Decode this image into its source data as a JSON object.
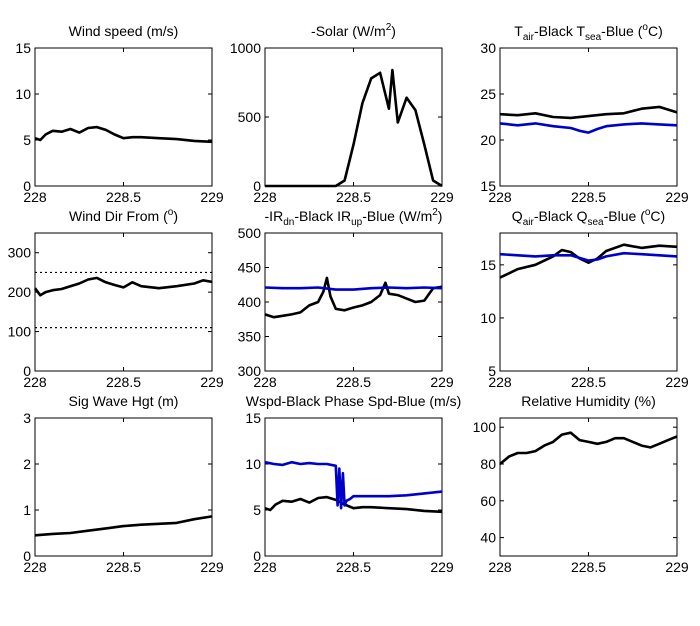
{
  "chart_data": [
    {
      "type": "line",
      "title": "Wind speed (m/s)",
      "xlim": [
        228,
        229
      ],
      "ylim": [
        0,
        15
      ],
      "xticks": [
        "228",
        "228.5",
        "229"
      ],
      "yticks": [
        "0",
        "5",
        "10",
        "15"
      ],
      "series": [
        {
          "color": "#000000",
          "x": [
            228,
            228.03,
            228.06,
            228.1,
            228.15,
            228.2,
            228.25,
            228.3,
            228.35,
            228.4,
            228.45,
            228.5,
            228.55,
            228.6,
            228.7,
            228.8,
            228.9,
            229
          ],
          "y": [
            5.2,
            5.0,
            5.6,
            6.0,
            5.9,
            6.2,
            5.8,
            6.3,
            6.4,
            6.1,
            5.6,
            5.2,
            5.3,
            5.3,
            5.2,
            5.1,
            4.9,
            4.8
          ]
        }
      ]
    },
    {
      "type": "line",
      "title": "-Solar (W/m",
      "title_sup": "2",
      "title_end": ")",
      "xlim": [
        228,
        229
      ],
      "ylim": [
        0,
        1000
      ],
      "xticks": [
        "228",
        "228.5",
        "229"
      ],
      "yticks": [
        "0",
        "500",
        "1000"
      ],
      "series": [
        {
          "color": "#000000",
          "x": [
            228,
            228.2,
            228.4,
            228.45,
            228.5,
            228.55,
            228.6,
            228.65,
            228.7,
            228.72,
            228.75,
            228.8,
            228.85,
            228.9,
            228.95,
            229
          ],
          "y": [
            0,
            0,
            0,
            40,
            300,
            600,
            780,
            820,
            560,
            840,
            460,
            640,
            550,
            300,
            40,
            0
          ]
        }
      ]
    },
    {
      "type": "line",
      "title_parts": [
        {
          "t": "T"
        },
        {
          "t": "air",
          "sub": true
        },
        {
          "t": "-Black  T"
        },
        {
          "t": "sea",
          "sub": true
        },
        {
          "t": "-Blue ("
        },
        {
          "t": "o",
          "sup": true
        },
        {
          "t": "C)"
        }
      ],
      "xlim": [
        228,
        229
      ],
      "ylim": [
        15,
        30
      ],
      "xticks": [
        "228",
        "228.5",
        "229"
      ],
      "yticks": [
        "15",
        "20",
        "25",
        "30"
      ],
      "series": [
        {
          "color": "#000000",
          "x": [
            228,
            228.1,
            228.2,
            228.3,
            228.4,
            228.5,
            228.6,
            228.7,
            228.8,
            228.9,
            229
          ],
          "y": [
            22.8,
            22.7,
            22.9,
            22.5,
            22.4,
            22.6,
            22.8,
            22.9,
            23.4,
            23.6,
            23.0
          ]
        },
        {
          "color": "#0000cc",
          "x": [
            228,
            228.1,
            228.2,
            228.3,
            228.4,
            228.45,
            228.5,
            228.55,
            228.6,
            228.7,
            228.8,
            228.9,
            229
          ],
          "y": [
            21.8,
            21.6,
            21.8,
            21.5,
            21.3,
            21.0,
            20.8,
            21.2,
            21.5,
            21.7,
            21.8,
            21.7,
            21.6
          ]
        }
      ]
    },
    {
      "type": "line",
      "title": "Wind Dir From (",
      "title_sup": "o",
      "title_end": ")",
      "xlim": [
        228,
        229
      ],
      "ylim": [
        0,
        350
      ],
      "xticks": [
        "228",
        "228.5",
        "229"
      ],
      "yticks": [
        "0",
        "100",
        "200",
        "300"
      ],
      "dotted_lines": [
        250,
        110
      ],
      "series": [
        {
          "color": "#000000",
          "x": [
            228,
            228.03,
            228.06,
            228.1,
            228.15,
            228.2,
            228.25,
            228.3,
            228.35,
            228.4,
            228.45,
            228.5,
            228.55,
            228.6,
            228.7,
            228.8,
            228.9,
            228.95,
            229
          ],
          "y": [
            210,
            192,
            200,
            205,
            208,
            215,
            222,
            232,
            236,
            225,
            218,
            212,
            225,
            215,
            210,
            215,
            222,
            230,
            226
          ]
        }
      ]
    },
    {
      "type": "line",
      "title_parts": [
        {
          "t": "-IR"
        },
        {
          "t": "dn",
          "sub": true
        },
        {
          "t": "-Black  IR"
        },
        {
          "t": "up",
          "sub": true
        },
        {
          "t": "-Blue (W/m"
        },
        {
          "t": "2",
          "sup": true
        },
        {
          "t": ")"
        }
      ],
      "xlim": [
        228,
        229
      ],
      "ylim": [
        300,
        500
      ],
      "xticks": [
        "228",
        "228.5",
        "229"
      ],
      "yticks": [
        "300",
        "350",
        "400",
        "450",
        "500"
      ],
      "series": [
        {
          "color": "#000000",
          "x": [
            228,
            228.05,
            228.1,
            228.15,
            228.2,
            228.25,
            228.3,
            228.33,
            228.35,
            228.37,
            228.4,
            228.45,
            228.5,
            228.55,
            228.6,
            228.65,
            228.68,
            228.7,
            228.75,
            228.8,
            228.85,
            228.9,
            228.95,
            229
          ],
          "y": [
            382,
            378,
            380,
            382,
            385,
            395,
            400,
            415,
            435,
            408,
            390,
            388,
            392,
            395,
            400,
            410,
            428,
            412,
            410,
            405,
            400,
            402,
            420,
            422
          ]
        },
        {
          "color": "#0000cc",
          "x": [
            228,
            228.1,
            228.2,
            228.3,
            228.4,
            228.5,
            228.6,
            228.7,
            228.8,
            228.9,
            229
          ],
          "y": [
            421,
            420,
            420,
            421,
            418,
            418,
            420,
            421,
            420,
            421,
            420
          ]
        }
      ]
    },
    {
      "type": "line",
      "title_parts": [
        {
          "t": "Q"
        },
        {
          "t": "air",
          "sub": true
        },
        {
          "t": "-Black  Q"
        },
        {
          "t": "sea",
          "sub": true
        },
        {
          "t": "-Blue ("
        },
        {
          "t": "o",
          "sup": true
        },
        {
          "t": "C)"
        }
      ],
      "xlim": [
        228,
        229
      ],
      "ylim": [
        5,
        18
      ],
      "xticks": [
        "228",
        "228.5",
        "229"
      ],
      "yticks": [
        "5",
        "10",
        "15"
      ],
      "series": [
        {
          "color": "#000000",
          "x": [
            228,
            228.1,
            228.2,
            228.3,
            228.35,
            228.4,
            228.45,
            228.5,
            228.55,
            228.6,
            228.7,
            228.8,
            228.9,
            229
          ],
          "y": [
            13.8,
            14.6,
            15.0,
            15.8,
            16.4,
            16.2,
            15.6,
            15.2,
            15.6,
            16.3,
            16.9,
            16.6,
            16.8,
            16.7
          ]
        },
        {
          "color": "#0000cc",
          "x": [
            228,
            228.1,
            228.2,
            228.3,
            228.4,
            228.5,
            228.55,
            228.6,
            228.7,
            228.8,
            228.9,
            229
          ],
          "y": [
            16.0,
            15.9,
            15.8,
            15.9,
            15.9,
            15.4,
            15.5,
            15.8,
            16.1,
            16.0,
            15.9,
            15.8
          ]
        }
      ]
    },
    {
      "type": "line",
      "title": "Sig Wave Hgt (m)",
      "xlim": [
        228,
        229
      ],
      "ylim": [
        0,
        3
      ],
      "xticks": [
        "228",
        "228.5",
        "229"
      ],
      "yticks": [
        "0",
        "1",
        "2",
        "3"
      ],
      "series": [
        {
          "color": "#000000",
          "x": [
            228,
            228.1,
            228.2,
            228.3,
            228.4,
            228.5,
            228.6,
            228.7,
            228.8,
            228.9,
            229
          ],
          "y": [
            0.45,
            0.48,
            0.5,
            0.55,
            0.6,
            0.65,
            0.68,
            0.7,
            0.72,
            0.8,
            0.86
          ]
        }
      ]
    },
    {
      "type": "line",
      "title": "Wspd-Black  Phase Spd-Blue (m/s)",
      "xlim": [
        228,
        229
      ],
      "ylim": [
        0,
        15
      ],
      "xticks": [
        "228",
        "228.5",
        "229"
      ],
      "yticks": [
        "0",
        "5",
        "10",
        "15"
      ],
      "series": [
        {
          "color": "#000000",
          "x": [
            228,
            228.03,
            228.06,
            228.1,
            228.15,
            228.2,
            228.25,
            228.3,
            228.35,
            228.4,
            228.45,
            228.5,
            228.55,
            228.6,
            228.7,
            228.8,
            228.9,
            229
          ],
          "y": [
            5.2,
            5.0,
            5.6,
            6.0,
            5.9,
            6.2,
            5.8,
            6.3,
            6.4,
            6.1,
            5.6,
            5.2,
            5.3,
            5.3,
            5.2,
            5.1,
            4.9,
            4.8
          ]
        },
        {
          "color": "#0000cc",
          "x": [
            228,
            228.05,
            228.1,
            228.15,
            228.2,
            228.25,
            228.3,
            228.35,
            228.4,
            228.41,
            228.42,
            228.43,
            228.44,
            228.45,
            228.46,
            228.48,
            228.5,
            228.6,
            228.7,
            228.8,
            228.9,
            229
          ],
          "y": [
            10.2,
            10.0,
            9.9,
            10.2,
            10.0,
            10.1,
            10.0,
            10.0,
            9.8,
            5.5,
            9.5,
            5.2,
            9.0,
            5.5,
            6.0,
            6.2,
            6.5,
            6.5,
            6.5,
            6.6,
            6.8,
            7.0
          ]
        }
      ]
    },
    {
      "type": "line",
      "title": "Relative Humidity (%)",
      "xlim": [
        228,
        229
      ],
      "ylim": [
        30,
        105
      ],
      "xticks": [
        "228",
        "228.5",
        "229"
      ],
      "yticks": [
        "40",
        "60",
        "80",
        "100"
      ],
      "series": [
        {
          "color": "#000000",
          "x": [
            228,
            228.05,
            228.1,
            228.15,
            228.2,
            228.25,
            228.3,
            228.35,
            228.4,
            228.45,
            228.5,
            228.55,
            228.6,
            228.65,
            228.7,
            228.75,
            228.8,
            228.85,
            228.9,
            228.95,
            229
          ],
          "y": [
            80,
            84,
            86,
            86,
            87,
            90,
            92,
            96,
            97,
            93,
            92,
            91,
            92,
            94,
            94,
            92,
            90,
            89,
            91,
            93,
            95
          ]
        }
      ]
    }
  ]
}
